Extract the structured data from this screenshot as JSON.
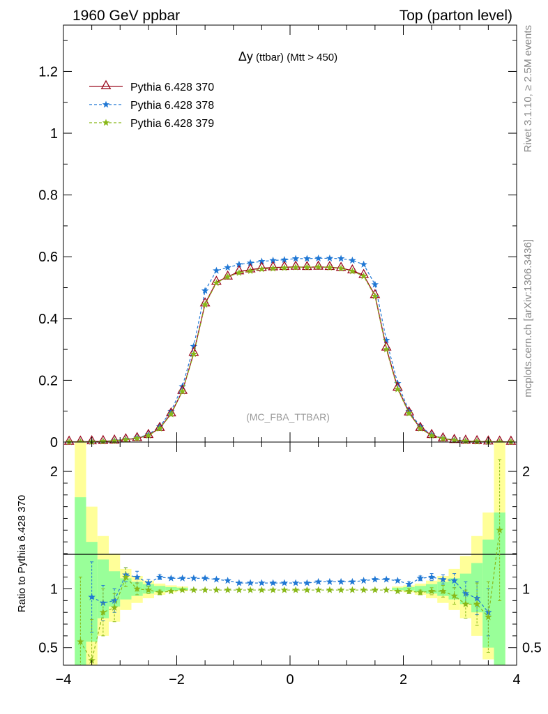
{
  "header": {
    "left": "1960 GeV ppbar",
    "right": "Top (parton level)"
  },
  "side_text": {
    "rivet": "Rivet 3.1.10, ≥ 2.5M events",
    "mcplots": "mcplots.cern.ch [arXiv:1306.3436]"
  },
  "chart_data": [
    {
      "type": "line",
      "panel": "main",
      "title_symbol": "Δy",
      "title_rest": " (ttbar) (Mtt > 450)",
      "watermark": "(MC_FBA_TTBAR)",
      "xlabel": "",
      "ylabel": "",
      "xlim": [
        -4,
        4
      ],
      "ylim": [
        0,
        1.35
      ],
      "yticks": [
        0,
        0.2,
        0.4,
        0.6,
        0.8,
        1,
        1.2
      ],
      "ytick_labels": [
        "0",
        "0.2",
        "0.4",
        "0.6",
        "0.8",
        "1",
        "1.2"
      ],
      "legend_position": "top-left",
      "x": [
        -3.9,
        -3.7,
        -3.5,
        -3.3,
        -3.1,
        -2.9,
        -2.7,
        -2.5,
        -2.3,
        -2.1,
        -1.9,
        -1.7,
        -1.5,
        -1.3,
        -1.1,
        -0.9,
        -0.7,
        -0.5,
        -0.3,
        -0.1,
        0.1,
        0.3,
        0.5,
        0.7,
        0.9,
        1.1,
        1.3,
        1.5,
        1.7,
        1.9,
        2.1,
        2.3,
        2.5,
        2.7,
        2.9,
        3.1,
        3.3,
        3.5,
        3.7,
        3.9
      ],
      "series": [
        {
          "name": "Pythia 6.428 370",
          "color": "#9a0a1e",
          "marker": "open-triangle",
          "dash": "solid",
          "values": [
            0.0003,
            0.0007,
            0.0015,
            0.0025,
            0.004,
            0.008,
            0.012,
            0.022,
            0.045,
            0.092,
            0.165,
            0.288,
            0.448,
            0.518,
            0.535,
            0.552,
            0.558,
            0.563,
            0.565,
            0.566,
            0.567,
            0.566,
            0.567,
            0.566,
            0.563,
            0.555,
            0.54,
            0.475,
            0.305,
            0.175,
            0.095,
            0.045,
            0.022,
            0.011,
            0.006,
            0.0035,
            0.002,
            0.001,
            0.0006,
            0.0003
          ]
        },
        {
          "name": "Pythia 6.428 378",
          "color": "#1f77d4",
          "marker": "star",
          "dash": "dashed",
          "values": [
            0.0003,
            0.0008,
            0.0015,
            0.0025,
            0.0045,
            0.009,
            0.014,
            0.024,
            0.05,
            0.1,
            0.18,
            0.31,
            0.49,
            0.555,
            0.565,
            0.575,
            0.58,
            0.585,
            0.588,
            0.59,
            0.594,
            0.594,
            0.595,
            0.595,
            0.594,
            0.588,
            0.575,
            0.51,
            0.33,
            0.19,
            0.1,
            0.05,
            0.024,
            0.012,
            0.007,
            0.0035,
            0.002,
            0.001,
            0.0006,
            0.0003
          ]
        },
        {
          "name": "Pythia 6.428 379",
          "color": "#88b818",
          "marker": "star",
          "dash": "dashed",
          "values": [
            0.0002,
            0.0004,
            0.001,
            0.002,
            0.0035,
            0.008,
            0.012,
            0.021,
            0.044,
            0.09,
            0.164,
            0.285,
            0.445,
            0.515,
            0.535,
            0.548,
            0.554,
            0.56,
            0.562,
            0.564,
            0.566,
            0.566,
            0.567,
            0.565,
            0.562,
            0.553,
            0.537,
            0.472,
            0.3,
            0.171,
            0.093,
            0.044,
            0.021,
            0.011,
            0.006,
            0.003,
            0.0018,
            0.0009,
            0.0005,
            0.0002
          ]
        }
      ]
    },
    {
      "type": "line",
      "panel": "ratio",
      "ylabel": "Ratio to Pythia 6.428 370",
      "xlabel": "",
      "xlim": [
        -4,
        4
      ],
      "ylim": [
        0.35,
        2.25
      ],
      "yticks": [
        0.5,
        1,
        2
      ],
      "ytick_labels": [
        "0.5",
        "1",
        "2"
      ],
      "xticks": [
        -4,
        -2,
        0,
        2,
        4
      ],
      "xtick_labels": [
        "−4",
        "−2",
        "0",
        "2",
        "4"
      ],
      "reference_line": 1,
      "x": [
        -3.9,
        -3.7,
        -3.5,
        -3.3,
        -3.1,
        -2.9,
        -2.7,
        -2.5,
        -2.3,
        -2.1,
        -1.9,
        -1.7,
        -1.5,
        -1.3,
        -1.1,
        -0.9,
        -0.7,
        -0.5,
        -0.3,
        -0.1,
        0.1,
        0.3,
        0.5,
        0.7,
        0.9,
        1.1,
        1.3,
        1.5,
        1.7,
        1.9,
        2.1,
        2.3,
        2.5,
        2.7,
        2.9,
        3.1,
        3.3,
        3.5,
        3.7,
        3.9
      ],
      "band_green": [
        [
          -3.7,
          0.3,
          1.78
        ],
        [
          -3.5,
          0.55,
          1.4
        ],
        [
          -3.3,
          0.75,
          1.25
        ],
        [
          -3.1,
          0.85,
          1.15
        ],
        [
          -2.9,
          0.91,
          1.09
        ],
        [
          -2.7,
          0.94,
          1.06
        ],
        [
          -2.5,
          0.96,
          1.04
        ],
        [
          -2.3,
          0.975,
          1.025
        ],
        [
          -2.1,
          0.985,
          1.015
        ],
        [
          -1.9,
          0.99,
          1.01
        ],
        [
          1.9,
          0.99,
          1.01
        ],
        [
          2.1,
          0.985,
          1.015
        ],
        [
          2.3,
          0.975,
          1.025
        ],
        [
          2.5,
          0.96,
          1.04
        ],
        [
          2.7,
          0.94,
          1.06
        ],
        [
          2.9,
          0.91,
          1.09
        ],
        [
          3.1,
          0.87,
          1.13
        ],
        [
          3.3,
          0.8,
          1.22
        ],
        [
          3.5,
          0.5,
          1.42
        ],
        [
          3.7,
          0.35,
          1.65
        ]
      ],
      "band_yellow": [
        [
          -3.7,
          0.3,
          2.3
        ],
        [
          -3.5,
          0.35,
          1.7
        ],
        [
          -3.3,
          0.6,
          1.45
        ],
        [
          -3.1,
          0.72,
          1.3
        ],
        [
          -2.9,
          0.82,
          1.17
        ],
        [
          -2.7,
          0.88,
          1.11
        ],
        [
          -2.5,
          0.92,
          1.07
        ],
        [
          -2.3,
          0.95,
          1.045
        ],
        [
          -2.1,
          0.97,
          1.03
        ],
        [
          -1.9,
          0.98,
          1.02
        ],
        [
          1.9,
          0.98,
          1.02
        ],
        [
          2.1,
          0.97,
          1.03
        ],
        [
          2.3,
          0.95,
          1.045
        ],
        [
          2.5,
          0.92,
          1.07
        ],
        [
          2.7,
          0.88,
          1.11
        ],
        [
          2.9,
          0.82,
          1.17
        ],
        [
          3.1,
          0.75,
          1.28
        ],
        [
          3.3,
          0.6,
          1.45
        ],
        [
          3.5,
          0.4,
          1.65
        ],
        [
          3.7,
          0.3,
          2.3
        ]
      ],
      "series": [
        {
          "name": "Pythia 6.428 378",
          "color": "#1f77d4",
          "x": [
            -3.5,
            -3.3,
            -3.1,
            -2.9,
            -2.7,
            -2.5,
            -2.3,
            -2.1,
            -1.9,
            -1.7,
            -1.5,
            -1.3,
            -1.1,
            -0.9,
            -0.7,
            -0.5,
            -0.3,
            -0.1,
            0.1,
            0.3,
            0.5,
            0.7,
            0.9,
            1.1,
            1.3,
            1.5,
            1.7,
            1.9,
            2.1,
            2.3,
            2.5,
            2.7,
            2.9,
            3.1,
            3.3,
            3.5
          ],
          "values": [
            0.93,
            0.88,
            0.9,
            1.12,
            1.1,
            1.05,
            1.1,
            1.09,
            1.09,
            1.09,
            1.09,
            1.08,
            1.07,
            1.05,
            1.05,
            1.05,
            1.05,
            1.05,
            1.05,
            1.05,
            1.06,
            1.06,
            1.06,
            1.06,
            1.07,
            1.08,
            1.08,
            1.07,
            1.04,
            1.09,
            1.1,
            1.08,
            1.07,
            0.96,
            0.92,
            0.8
          ],
          "err": [
            0.3,
            0.15,
            0.1,
            0.06,
            0.05,
            0.03,
            0.02,
            0.01,
            0.01,
            0.01,
            0.01,
            0.01,
            0.01,
            0.01,
            0.01,
            0.01,
            0.01,
            0.01,
            0.01,
            0.01,
            0.01,
            0.01,
            0.01,
            0.01,
            0.01,
            0.01,
            0.01,
            0.01,
            0.02,
            0.02,
            0.03,
            0.04,
            0.06,
            0.1,
            0.14,
            0.2
          ]
        },
        {
          "name": "Pythia 6.428 379",
          "color": "#88b818",
          "x": [
            -3.7,
            -3.5,
            -3.3,
            -3.1,
            -2.9,
            -2.7,
            -2.5,
            -2.3,
            -2.1,
            -1.9,
            -1.7,
            -1.5,
            -1.3,
            -1.1,
            -0.9,
            -0.7,
            -0.5,
            -0.3,
            -0.1,
            0.1,
            0.3,
            0.5,
            0.7,
            0.9,
            1.1,
            1.3,
            1.5,
            1.7,
            1.9,
            2.1,
            2.3,
            2.5,
            2.7,
            2.9,
            3.1,
            3.3,
            3.5,
            3.7
          ],
          "values": [
            0.55,
            0.39,
            0.8,
            0.84,
            1.1,
            1.0,
            0.99,
            0.97,
            0.98,
            0.99,
            0.99,
            0.99,
            0.99,
            0.99,
            0.99,
            0.99,
            0.99,
            0.99,
            0.99,
            0.99,
            0.99,
            0.99,
            0.99,
            0.99,
            0.99,
            0.99,
            0.99,
            0.99,
            0.98,
            0.98,
            0.97,
            0.98,
            0.98,
            0.94,
            0.87,
            0.87,
            0.76,
            1.5
          ],
          "err": [
            0.55,
            0.35,
            0.2,
            0.12,
            0.08,
            0.05,
            0.03,
            0.02,
            0.01,
            0.01,
            0.01,
            0.01,
            0.01,
            0.01,
            0.01,
            0.01,
            0.01,
            0.01,
            0.01,
            0.01,
            0.01,
            0.01,
            0.01,
            0.01,
            0.01,
            0.01,
            0.01,
            0.01,
            0.01,
            0.02,
            0.02,
            0.03,
            0.05,
            0.07,
            0.12,
            0.18,
            0.3,
            0.6
          ]
        }
      ]
    }
  ]
}
